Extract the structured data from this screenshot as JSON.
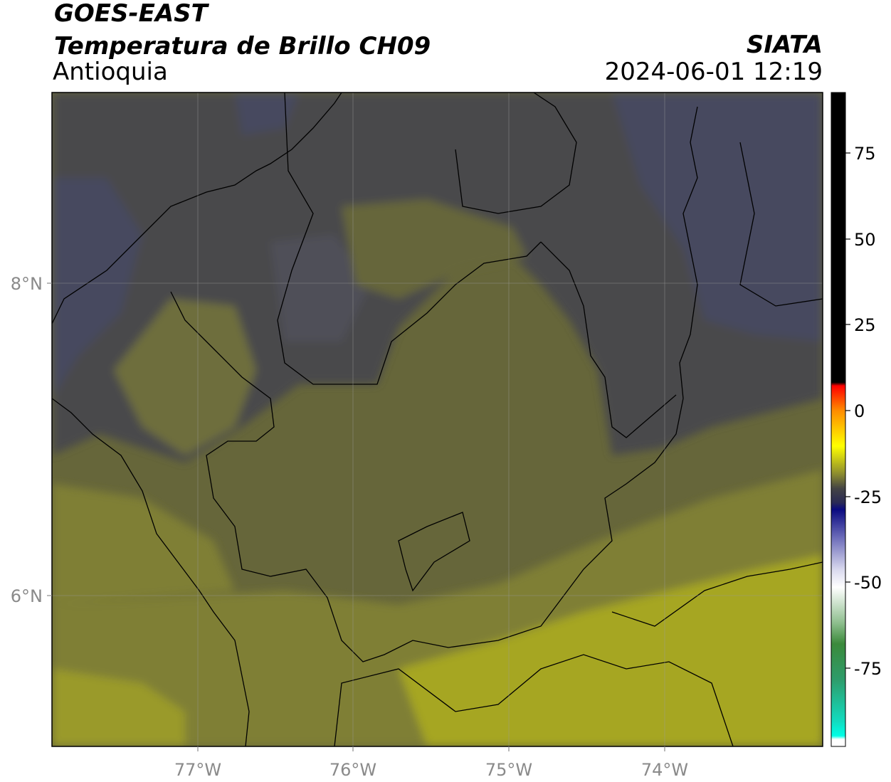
{
  "header": {
    "satellite": "GOES-EAST",
    "product": "Temperatura de Brillo CH09",
    "region": "Antioquia",
    "brand": "SIATA",
    "timestamp": "2024-06-01 12:19"
  },
  "map": {
    "lon_ticks": [
      "77°W",
      "76°W",
      "75°W",
      "74°W"
    ],
    "lat_ticks": [
      "8°N",
      "6°N"
    ],
    "colors": {
      "coldest_cloud": "#474a5e",
      "cold_gray": "#4a4a4c",
      "mid_olive": "#66663a",
      "warm_olive": "#7f7f36",
      "warm_yellow": "#a6a624",
      "border": "#000000"
    }
  },
  "colorbar": {
    "labels": [
      "75",
      "50",
      "25",
      "0",
      "-25",
      "-50",
      "-75"
    ],
    "stops": [
      {
        "value": 90,
        "color": "#000000"
      },
      {
        "value": 8,
        "color": "#000000"
      },
      {
        "value": 7,
        "color": "#ff0000"
      },
      {
        "value": 0,
        "color": "#ff8c00"
      },
      {
        "value": -10,
        "color": "#ffff00"
      },
      {
        "value": -18,
        "color": "#8a8a30"
      },
      {
        "value": -22,
        "color": "#444444"
      },
      {
        "value": -26,
        "color": "#2a2a55"
      },
      {
        "value": -28,
        "color": "#0a0a80"
      },
      {
        "value": -36,
        "color": "#6d6dba"
      },
      {
        "value": -45,
        "color": "#d9d9ee"
      },
      {
        "value": -50,
        "color": "#ffffff"
      },
      {
        "value": -60,
        "color": "#8fbf8f"
      },
      {
        "value": -66,
        "color": "#3b8a3b"
      },
      {
        "value": -76,
        "color": "#2e9c6a"
      },
      {
        "value": -88,
        "color": "#12dcc0"
      },
      {
        "value": -92,
        "color": "#00ffe6"
      },
      {
        "value": -93,
        "color": "#ffffff"
      }
    ]
  }
}
